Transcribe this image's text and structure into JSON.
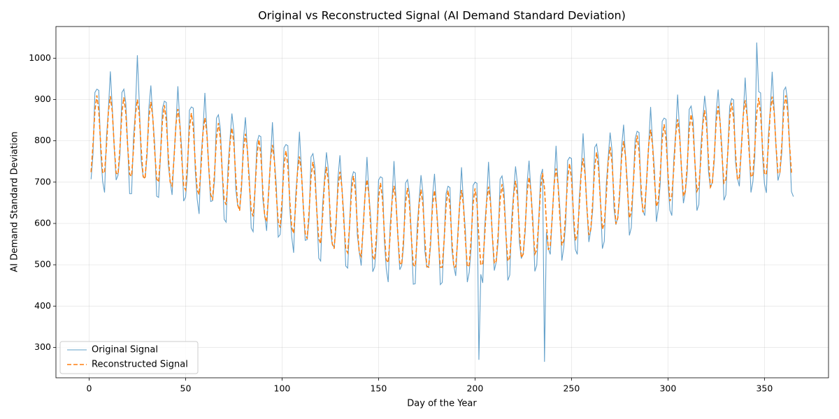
{
  "chart_data": {
    "type": "line",
    "title": "Original vs Reconstructed Signal (AI Demand Standard Deviation)",
    "xlabel": "Day of the Year",
    "ylabel": "AI Demand Standard Deviation",
    "x": [
      1,
      2,
      3,
      4,
      5,
      6,
      7,
      8,
      9,
      10,
      11,
      12,
      13,
      14,
      15,
      16,
      17,
      18,
      19,
      20,
      21,
      22,
      23,
      24,
      25,
      26,
      27,
      28,
      29,
      30,
      31,
      32,
      33,
      34,
      35,
      36,
      37,
      38,
      39,
      40,
      41,
      42,
      43,
      44,
      45,
      46,
      47,
      48,
      49,
      50,
      51,
      52,
      53,
      54,
      55,
      56,
      57,
      58,
      59,
      60,
      61,
      62,
      63,
      64,
      65,
      66,
      67,
      68,
      69,
      70,
      71,
      72,
      73,
      74,
      75,
      76,
      77,
      78,
      79,
      80,
      81,
      82,
      83,
      84,
      85,
      86,
      87,
      88,
      89,
      90,
      91,
      92,
      93,
      94,
      95,
      96,
      97,
      98,
      99,
      100,
      101,
      102,
      103,
      104,
      105,
      106,
      107,
      108,
      109,
      110,
      111,
      112,
      113,
      114,
      115,
      116,
      117,
      118,
      119,
      120,
      121,
      122,
      123,
      124,
      125,
      126,
      127,
      128,
      129,
      130,
      131,
      132,
      133,
      134,
      135,
      136,
      137,
      138,
      139,
      140,
      141,
      142,
      143,
      144,
      145,
      146,
      147,
      148,
      149,
      150,
      151,
      152,
      153,
      154,
      155,
      156,
      157,
      158,
      159,
      160,
      161,
      162,
      163,
      164,
      165,
      166,
      167,
      168,
      169,
      170,
      171,
      172,
      173,
      174,
      175,
      176,
      177,
      178,
      179,
      180,
      181,
      182,
      183,
      184,
      185,
      186,
      187,
      188,
      189,
      190,
      191,
      192,
      193,
      194,
      195,
      196,
      197,
      198,
      199,
      200,
      201,
      202,
      203,
      204,
      205,
      206,
      207,
      208,
      209,
      210,
      211,
      212,
      213,
      214,
      215,
      216,
      217,
      218,
      219,
      220,
      221,
      222,
      223,
      224,
      225,
      226,
      227,
      228,
      229,
      230,
      231,
      232,
      233,
      234,
      235,
      236,
      237,
      238,
      239,
      240,
      241,
      242,
      243,
      244,
      245,
      246,
      247,
      248,
      249,
      250,
      251,
      252,
      253,
      254,
      255,
      256,
      257,
      258,
      259,
      260,
      261,
      262,
      263,
      264,
      265,
      266,
      267,
      268,
      269,
      270,
      271,
      272,
      273,
      274,
      275,
      276,
      277,
      278,
      279,
      280,
      281,
      282,
      283,
      284,
      285,
      286,
      287,
      288,
      289,
      290,
      291,
      292,
      293,
      294,
      295,
      296,
      297,
      298,
      299,
      300,
      301,
      302,
      303,
      304,
      305,
      306,
      307,
      308,
      309,
      310,
      311,
      312,
      313,
      314,
      315,
      316,
      317,
      318,
      319,
      320,
      321,
      322,
      323,
      324,
      325,
      326,
      327,
      328,
      329,
      330,
      331,
      332,
      333,
      334,
      335,
      336,
      337,
      338,
      339,
      340,
      341,
      342,
      343,
      344,
      345,
      346,
      347,
      348,
      349,
      350,
      351,
      352,
      353,
      354,
      355,
      356,
      357,
      358,
      359,
      360,
      361,
      362,
      363,
      364,
      365
    ],
    "series": [
      {
        "name": "Original Signal",
        "color": "#1f77b4",
        "dashed": false,
        "values": [
          707,
          767,
          917,
          925,
          922,
          772,
          702,
          675,
          810,
          875,
          968,
          880,
          785,
          705,
          717,
          767,
          917,
          925,
          892,
          787,
          672,
          672,
          807,
          872,
          1007,
          892,
          752,
          712,
          711,
          761,
          881,
          934,
          856,
          791,
          666,
          663,
          768,
          878,
          896,
          893,
          743,
          703,
          669,
          764,
          839,
          932,
          844,
          779,
          654,
          664,
          724,
          874,
          882,
          879,
          729,
          659,
          623,
          758,
          823,
          916,
          828,
          733,
          653,
          655,
          705,
          855,
          863,
          830,
          725,
          610,
          603,
          738,
          803,
          866,
          823,
          683,
          643,
          634,
          684,
          804,
          857,
          779,
          714,
          589,
          580,
          685,
          795,
          813,
          810,
          660,
          620,
          582,
          677,
          752,
          845,
          757,
          692,
          567,
          573,
          633,
          783,
          791,
          788,
          638,
          568,
          529,
          664,
          729,
          822,
          734,
          639,
          559,
          561,
          611,
          761,
          769,
          736,
          631,
          516,
          509,
          644,
          709,
          772,
          729,
          589,
          549,
          542,
          592,
          712,
          765,
          687,
          622,
          497,
          492,
          597,
          707,
          725,
          722,
          572,
          532,
          498,
          593,
          668,
          761,
          673,
          608,
          483,
          495,
          555,
          705,
          713,
          710,
          560,
          490,
          458,
          593,
          658,
          751,
          663,
          568,
          488,
          498,
          548,
          698,
          706,
          673,
          568,
          453,
          454,
          589,
          654,
          717,
          674,
          534,
          494,
          497,
          547,
          667,
          720,
          642,
          577,
          452,
          457,
          562,
          672,
          690,
          687,
          537,
          497,
          473,
          568,
          643,
          736,
          648,
          583,
          458,
          482,
          542,
          692,
          700,
          697,
          270,
          477,
          456,
          591,
          656,
          749,
          661,
          566,
          486,
          507,
          557,
          707,
          715,
          682,
          577,
          462,
          475,
          610,
          675,
          738,
          695,
          555,
          515,
          529,
          579,
          699,
          752,
          674,
          609,
          484,
          499,
          604,
          714,
          732,
          265,
          579,
          539,
          525,
          620,
          695,
          788,
          700,
          635,
          510,
          542,
          602,
          752,
          760,
          757,
          607,
          537,
          525,
          660,
          725,
          818,
          730,
          635,
          555,
          584,
          634,
          784,
          792,
          759,
          654,
          539,
          557,
          692,
          757,
          820,
          777,
          637,
          597,
          616,
          666,
          786,
          839,
          761,
          696,
          571,
          590,
          695,
          805,
          823,
          820,
          670,
          630,
          619,
          714,
          789,
          882,
          794,
          729,
          604,
          637,
          697,
          847,
          855,
          852,
          702,
          632,
          619,
          754,
          819,
          912,
          824,
          729,
          649,
          676,
          726,
          876,
          884,
          851,
          746,
          631,
          646,
          781,
          846,
          909,
          866,
          726,
          686,
          701,
          751,
          871,
          924,
          846,
          781,
          656,
          669,
          774,
          884,
          902,
          899,
          749,
          709,
          690,
          785,
          860,
          953,
          865,
          800,
          675,
          701,
          761,
          1038,
          919,
          916,
          766,
          696,
          674,
          809,
          874,
          967,
          879,
          784,
          704,
          722,
          772,
          922,
          930,
          897,
          792,
          677,
          665
        ]
      },
      {
        "name": "Reconstructed Signal",
        "color": "#ff7f0e",
        "dashed": true,
        "values": [
          724,
          790,
          873,
          910,
          873,
          790,
          724,
          722,
          788,
          871,
          908,
          871,
          788,
          722,
          719,
          785,
          868,
          905,
          868,
          785,
          719,
          714,
          780,
          863,
          900,
          863,
          780,
          714,
          708,
          774,
          857,
          894,
          857,
          774,
          708,
          700,
          766,
          849,
          886,
          849,
          766,
          700,
          691,
          757,
          840,
          877,
          840,
          757,
          691,
          681,
          747,
          830,
          867,
          830,
          747,
          681,
          670,
          736,
          819,
          856,
          819,
          736,
          670,
          657,
          723,
          806,
          843,
          806,
          723,
          657,
          645,
          711,
          794,
          831,
          794,
          711,
          645,
          631,
          697,
          780,
          817,
          780,
          697,
          631,
          617,
          683,
          766,
          803,
          766,
          683,
          617,
          604,
          670,
          753,
          790,
          753,
          670,
          604,
          590,
          656,
          739,
          776,
          739,
          656,
          590,
          576,
          642,
          725,
          762,
          725,
          642,
          576,
          563,
          629,
          712,
          749,
          712,
          629,
          563,
          551,
          617,
          700,
          737,
          700,
          617,
          551,
          539,
          605,
          688,
          725,
          688,
          605,
          539,
          529,
          595,
          678,
          715,
          678,
          595,
          529,
          520,
          586,
          669,
          706,
          669,
          586,
          520,
          512,
          578,
          661,
          698,
          661,
          578,
          512,
          505,
          571,
          654,
          691,
          654,
          571,
          505,
          500,
          566,
          649,
          686,
          649,
          566,
          500,
          496,
          562,
          645,
          682,
          645,
          562,
          496,
          494,
          560,
          643,
          680,
          643,
          560,
          494,
          494,
          560,
          643,
          680,
          643,
          560,
          494,
          495,
          561,
          644,
          681,
          644,
          561,
          495,
          499,
          565,
          648,
          685,
          648,
          565,
          499,
          503,
          569,
          652,
          689,
          652,
          569,
          503,
          509,
          575,
          658,
          695,
          658,
          575,
          509,
          517,
          583,
          666,
          703,
          666,
          583,
          517,
          526,
          592,
          675,
          712,
          675,
          592,
          526,
          536,
          602,
          685,
          722,
          685,
          602,
          536,
          547,
          613,
          696,
          733,
          696,
          613,
          547,
          559,
          625,
          708,
          745,
          708,
          625,
          559,
          572,
          638,
          721,
          758,
          721,
          638,
          572,
          586,
          652,
          735,
          772,
          735,
          652,
          586,
          599,
          665,
          748,
          785,
          748,
          665,
          599,
          613,
          679,
          762,
          799,
          762,
          679,
          613,
          627,
          693,
          776,
          813,
          776,
          693,
          627,
          641,
          707,
          790,
          827,
          790,
          707,
          641,
          654,
          720,
          803,
          840,
          803,
          720,
          654,
          666,
          732,
          815,
          852,
          815,
          732,
          666,
          678,
          744,
          827,
          864,
          827,
          744,
          678,
          688,
          754,
          837,
          874,
          837,
          754,
          688,
          698,
          764,
          847,
          884,
          847,
          764,
          698,
          706,
          772,
          855,
          892,
          855,
          772,
          706,
          712,
          778,
          861,
          898,
          861,
          778,
          712,
          718,
          784,
          867,
          904,
          867,
          784,
          718,
          721,
          787,
          870,
          907,
          870,
          787,
          721,
          724,
          790,
          873,
          910,
          873,
          790,
          724,
          724
        ]
      }
    ],
    "xlim": [
      -17.2,
      383.2
    ],
    "xticks": [
      0,
      50,
      100,
      150,
      200,
      250,
      300,
      350
    ],
    "ylim": [
      226.4,
      1076.6
    ],
    "yticks": [
      300,
      400,
      500,
      600,
      700,
      800,
      900,
      1000
    ],
    "grid": true,
    "legend": "lower left"
  }
}
